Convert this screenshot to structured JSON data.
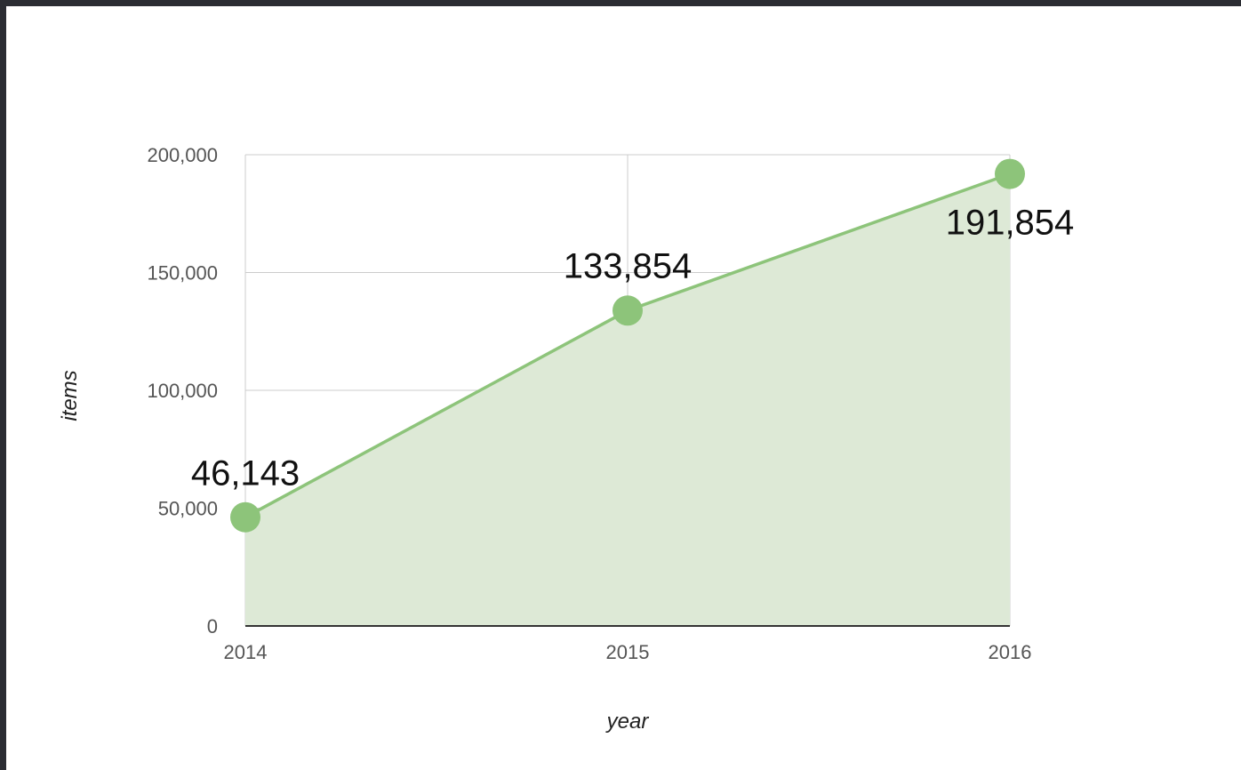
{
  "chart_data": {
    "type": "area",
    "x": [
      "2014",
      "2015",
      "2016"
    ],
    "values": [
      46143,
      133854,
      191854
    ],
    "data_labels": [
      "46,143",
      "133,854",
      "191,854"
    ],
    "xlabel": "year",
    "ylabel": "items",
    "ylim": [
      0,
      200000
    ],
    "yticks": [
      0,
      50000,
      100000,
      150000,
      200000
    ],
    "ytick_labels": [
      "0",
      "50,000",
      "100,000",
      "150,000",
      "200,000"
    ],
    "grid": true,
    "legend": "none",
    "colors": {
      "line": "#8dc47a",
      "fill": "#dde9d6",
      "marker": "#8dc47a",
      "grid": "#cccccc",
      "baseline": "#333333"
    }
  }
}
